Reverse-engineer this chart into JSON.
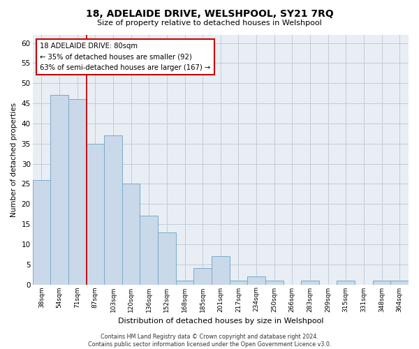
{
  "title": "18, ADELAIDE DRIVE, WELSHPOOL, SY21 7RQ",
  "subtitle": "Size of property relative to detached houses in Welshpool",
  "xlabel": "Distribution of detached houses by size in Welshpool",
  "ylabel": "Number of detached properties",
  "categories": [
    "38sqm",
    "54sqm",
    "71sqm",
    "87sqm",
    "103sqm",
    "120sqm",
    "136sqm",
    "152sqm",
    "168sqm",
    "185sqm",
    "201sqm",
    "217sqm",
    "234sqm",
    "250sqm",
    "266sqm",
    "283sqm",
    "299sqm",
    "315sqm",
    "331sqm",
    "348sqm",
    "364sqm"
  ],
  "values": [
    26,
    47,
    46,
    35,
    37,
    25,
    17,
    13,
    1,
    4,
    7,
    1,
    2,
    1,
    0,
    1,
    0,
    1,
    0,
    1,
    1
  ],
  "bar_color": "#c9d9ea",
  "bar_edge_color": "#7aaac8",
  "ylim": [
    0,
    62
  ],
  "yticks": [
    0,
    5,
    10,
    15,
    20,
    25,
    30,
    35,
    40,
    45,
    50,
    55,
    60
  ],
  "property_line_x": 2.5,
  "annotation_title": "18 ADELAIDE DRIVE: 80sqm",
  "annotation_line1": "← 35% of detached houses are smaller (92)",
  "annotation_line2": "63% of semi-detached houses are larger (167) →",
  "annotation_box_color": "#ffffff",
  "annotation_box_edge": "#cc0000",
  "property_line_color": "#cc0000",
  "footer_line1": "Contains HM Land Registry data © Crown copyright and database right 2024.",
  "footer_line2": "Contains public sector information licensed under the Open Government Licence v3.0.",
  "grid_color": "#c0ccda",
  "background_color": "#e8eef4"
}
